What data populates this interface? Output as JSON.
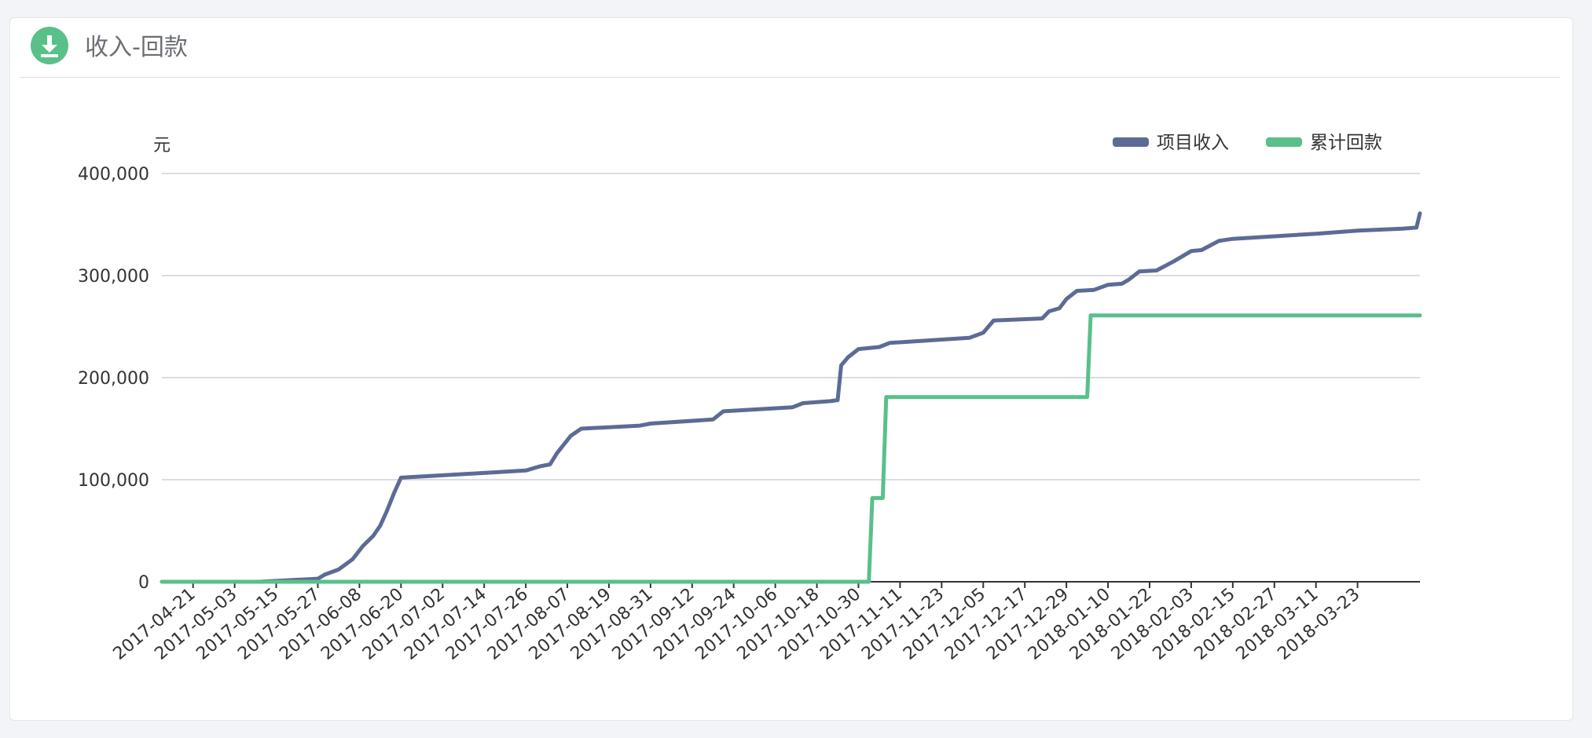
{
  "panel": {
    "title": "收入-回款",
    "icon": "download-icon",
    "accent_color": "#59c08a"
  },
  "chart_data": {
    "type": "line",
    "title": "",
    "xlabel": "",
    "ylabel": "元",
    "ylim": [
      0,
      400000
    ],
    "yticks": [
      0,
      100000,
      200000,
      300000,
      400000
    ],
    "ytick_labels": [
      "0",
      "100,000",
      "200,000",
      "300,000",
      "400,000"
    ],
    "grid": true,
    "legend_position": "top-right",
    "x_range": [
      "2017-04-12",
      "2018-04-10"
    ],
    "xticks": [
      "2017-04-21",
      "2017-05-03",
      "2017-05-15",
      "2017-05-27",
      "2017-06-08",
      "2017-06-20",
      "2017-07-02",
      "2017-07-14",
      "2017-07-26",
      "2017-08-07",
      "2017-08-19",
      "2017-08-31",
      "2017-09-12",
      "2017-09-24",
      "2017-10-06",
      "2017-10-18",
      "2017-10-30",
      "2017-11-11",
      "2017-11-23",
      "2017-12-05",
      "2017-12-17",
      "2017-12-29",
      "2018-01-10",
      "2018-01-22",
      "2018-02-03",
      "2018-02-15",
      "2018-02-27",
      "2018-03-11",
      "2018-03-23"
    ],
    "series": [
      {
        "name": "项目收入",
        "color": "#5c6b96",
        "points": [
          [
            "2017-04-12",
            0
          ],
          [
            "2017-05-10",
            0
          ],
          [
            "2017-05-27",
            3000
          ],
          [
            "2017-05-29",
            7000
          ],
          [
            "2017-06-02",
            12000
          ],
          [
            "2017-06-06",
            22000
          ],
          [
            "2017-06-09",
            35000
          ],
          [
            "2017-06-12",
            45000
          ],
          [
            "2017-06-14",
            55000
          ],
          [
            "2017-06-16",
            70000
          ],
          [
            "2017-06-18",
            87000
          ],
          [
            "2017-06-20",
            102000
          ],
          [
            "2017-07-26",
            109000
          ],
          [
            "2017-07-30",
            113000
          ],
          [
            "2017-08-02",
            115000
          ],
          [
            "2017-08-04",
            126000
          ],
          [
            "2017-08-08",
            143000
          ],
          [
            "2017-08-11",
            150000
          ],
          [
            "2017-08-28",
            153000
          ],
          [
            "2017-08-31",
            155000
          ],
          [
            "2017-09-18",
            159000
          ],
          [
            "2017-09-21",
            167000
          ],
          [
            "2017-10-11",
            171000
          ],
          [
            "2017-10-14",
            175000
          ],
          [
            "2017-10-22",
            177000
          ],
          [
            "2017-10-24",
            178000
          ],
          [
            "2017-10-25",
            212000
          ],
          [
            "2017-10-27",
            220000
          ],
          [
            "2017-10-30",
            228000
          ],
          [
            "2017-11-05",
            230000
          ],
          [
            "2017-11-08",
            234000
          ],
          [
            "2017-12-01",
            239000
          ],
          [
            "2017-12-05",
            244000
          ],
          [
            "2017-12-08",
            256000
          ],
          [
            "2017-12-22",
            258000
          ],
          [
            "2017-12-24",
            265000
          ],
          [
            "2017-12-27",
            268000
          ],
          [
            "2017-12-29",
            277000
          ],
          [
            "2018-01-01",
            285000
          ],
          [
            "2018-01-06",
            286000
          ],
          [
            "2018-01-10",
            291000
          ],
          [
            "2018-01-14",
            292000
          ],
          [
            "2018-01-16",
            296000
          ],
          [
            "2018-01-19",
            304000
          ],
          [
            "2018-01-24",
            305000
          ],
          [
            "2018-01-29",
            314000
          ],
          [
            "2018-02-03",
            324000
          ],
          [
            "2018-02-06",
            325000
          ],
          [
            "2018-02-11",
            334000
          ],
          [
            "2018-02-15",
            336000
          ],
          [
            "2018-03-11",
            341000
          ],
          [
            "2018-03-23",
            344000
          ],
          [
            "2018-04-05",
            346000
          ],
          [
            "2018-04-09",
            347000
          ],
          [
            "2018-04-10",
            361000
          ]
        ]
      },
      {
        "name": "累计回款",
        "color": "#59c08a",
        "points": [
          [
            "2017-04-12",
            0
          ],
          [
            "2017-11-02",
            0
          ],
          [
            "2017-11-03",
            82000
          ],
          [
            "2017-11-06",
            82000
          ],
          [
            "2017-11-07",
            181000
          ],
          [
            "2018-01-04",
            181000
          ],
          [
            "2018-01-05",
            261000
          ],
          [
            "2018-04-10",
            261000
          ]
        ]
      }
    ]
  }
}
